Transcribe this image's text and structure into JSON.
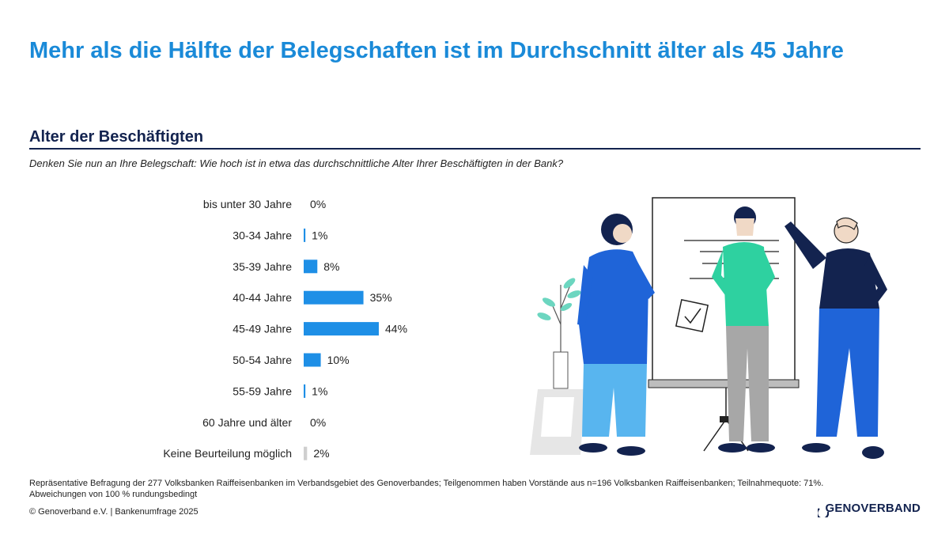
{
  "header": {
    "title": "Mehr als die Hälfte der Belegschaften ist im Durchschnitt älter als 45 Jahre",
    "subtitle": "Alter der Beschäftigten",
    "question": "Denken Sie nun an Ihre Belegschaft: Wie hoch ist in etwa das durchschnittliche Alter Ihrer Beschäftigten in der Bank?"
  },
  "chart_data": {
    "type": "bar",
    "orientation": "horizontal",
    "categories": [
      "bis unter 30 Jahre",
      "30-34 Jahre",
      "35-39 Jahre",
      "40-44 Jahre",
      "45-49 Jahre",
      "50-54 Jahre",
      "55-59 Jahre",
      "60 Jahre und älter",
      "Keine Beurteilung möglich"
    ],
    "values": [
      0,
      1,
      8,
      35,
      44,
      10,
      1,
      0,
      2
    ],
    "value_labels": [
      "0%",
      "1%",
      "8%",
      "35%",
      "44%",
      "10%",
      "1%",
      "0%",
      "2%"
    ],
    "colors": [
      "#1e8fe6",
      "#1e8fe6",
      "#1e8fe6",
      "#1e8fe6",
      "#1e8fe6",
      "#1e8fe6",
      "#1e8fe6",
      "#1e8fe6",
      "#cfcfcf"
    ],
    "unit": "%",
    "xlim": [
      0,
      44
    ]
  },
  "footer": {
    "note1": "Repräsentative Befragung der 277 Volksbanken Raiffeisenbanken im Verbandsgebiet des Genoverbandes; Teilgenommen haben Vorstände aus n=196 Volksbanken Raiffeisenbanken; Teilnahmequote: 71%.",
    "note2": "Abweichungen von 100 % rundungsbedingt",
    "copyright": "© Genoverband e.V. | Bankenumfrage 2025",
    "logo": "GENOVERBAND"
  }
}
